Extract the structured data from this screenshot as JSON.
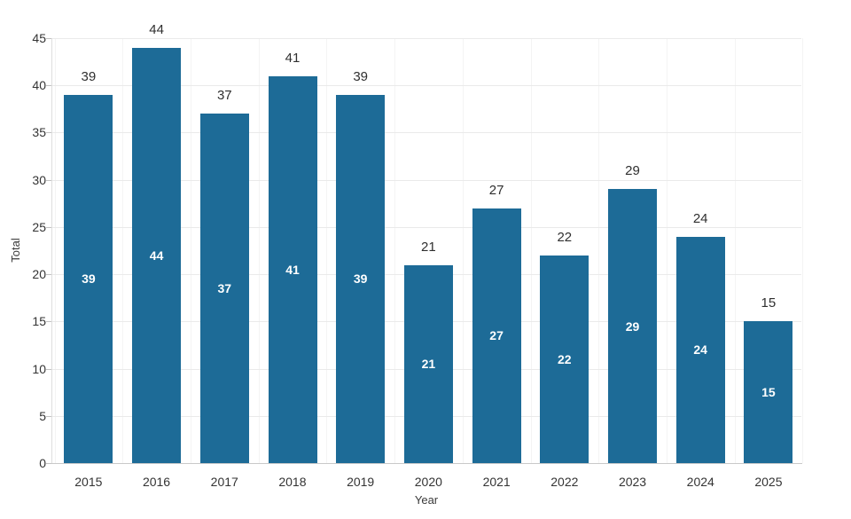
{
  "chart_data": {
    "type": "bar",
    "title": "",
    "xlabel": "Year",
    "ylabel": "Total",
    "categories": [
      "2015",
      "2016",
      "2017",
      "2018",
      "2019",
      "2020",
      "2021",
      "2022",
      "2023",
      "2024",
      "2025"
    ],
    "values": [
      39,
      44,
      37,
      41,
      39,
      21,
      27,
      22,
      29,
      24,
      15
    ],
    "ylim": [
      0,
      45
    ],
    "yticks": [
      0,
      5,
      10,
      15,
      20,
      25,
      30,
      35,
      40,
      45
    ],
    "grid": "horizontal-major-with-faint-column-boundaries",
    "legend": "none",
    "data_labels": {
      "above_bar": true,
      "inside_bar": true
    },
    "colors": {
      "bar": "#1d6b97",
      "label_above": "#2f2f2f",
      "label_inside": "#ffffff",
      "axis_text": "#333333",
      "axis_title_text": "#3a3a3a",
      "gridline": "#eaeaea",
      "column_boundary_line": "#f4f4f4",
      "axis_line": "#c9c9c9",
      "tick_mark": "#c2c2c2",
      "background": "#ffffff"
    }
  }
}
